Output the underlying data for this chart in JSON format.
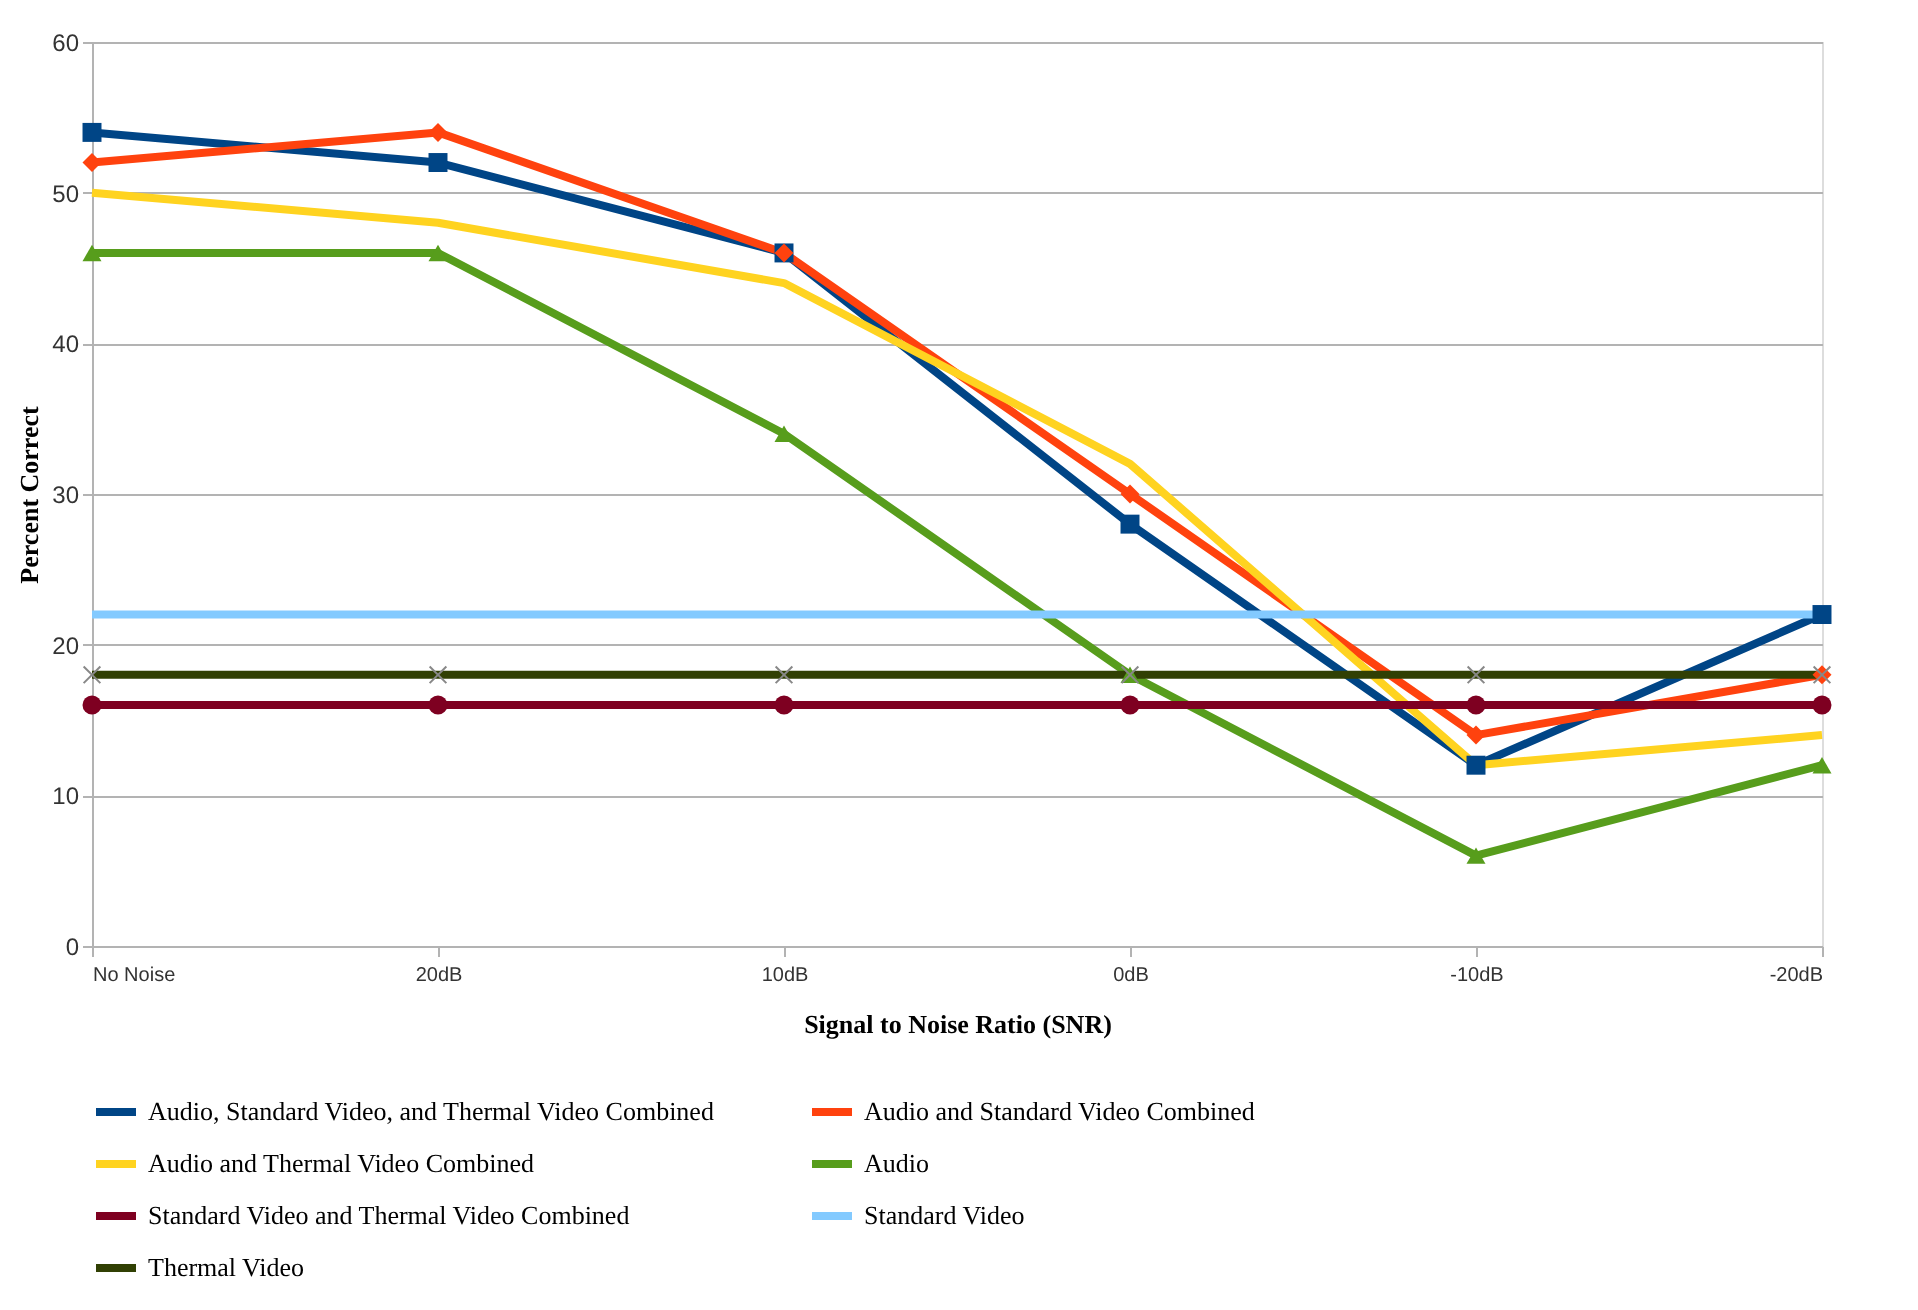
{
  "chart_data": {
    "type": "line",
    "xlabel": "Signal to Noise Ratio (SNR)",
    "ylabel": "Percent Correct",
    "categories": [
      "No Noise",
      "20dB",
      "10dB",
      "0dB",
      "-10dB",
      "-20dB"
    ],
    "ylim": [
      0,
      60
    ],
    "yticks": [
      0,
      10,
      20,
      30,
      40,
      50,
      60
    ],
    "grid": "y",
    "legend": "bottom",
    "line_style": "solid",
    "series": [
      {
        "name": "Audio, Standard Video, and Thermal Video Combined",
        "color": "#004586",
        "marker": "square",
        "values": [
          54,
          52,
          46,
          28,
          12,
          22
        ]
      },
      {
        "name": "Audio and Standard Video Combined",
        "color": "#ff420e",
        "marker": "diamond",
        "values": [
          52,
          54,
          46,
          30,
          14,
          18
        ]
      },
      {
        "name": "Audio and Thermal Video Combined",
        "color": "#ffd320",
        "marker": "none",
        "values": [
          50,
          48,
          44,
          32,
          12,
          14
        ]
      },
      {
        "name": "Audio",
        "color": "#579d1c",
        "marker": "triangle",
        "values": [
          46,
          46,
          34,
          18,
          6,
          12
        ]
      },
      {
        "name": "Standard Video and Thermal Video Combined",
        "color": "#7e0021",
        "marker": "circle",
        "values": [
          16,
          16,
          16,
          16,
          16,
          16
        ]
      },
      {
        "name": "Standard Video",
        "color": "#83caff",
        "marker": "none",
        "values": [
          22,
          22,
          22,
          22,
          22,
          22
        ]
      },
      {
        "name": "Thermal Video",
        "color": "#314004",
        "marker": "cross",
        "values": [
          18,
          18,
          18,
          18,
          18,
          18
        ]
      }
    ]
  }
}
